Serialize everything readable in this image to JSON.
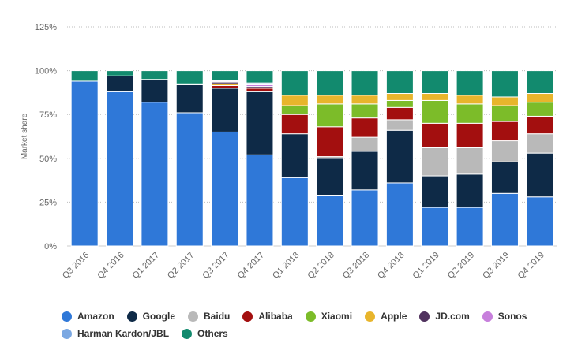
{
  "chart_data": {
    "type": "bar",
    "stacked": true,
    "ylabel": "Market share",
    "ylim": [
      0,
      125
    ],
    "yticks": [
      0,
      25,
      50,
      75,
      100,
      125
    ],
    "ytick_labels": [
      "0%",
      "25%",
      "50%",
      "75%",
      "100%",
      "125%"
    ],
    "grid": true,
    "legend_position": "bottom",
    "categories": [
      "Q3 2016",
      "Q4 2016",
      "Q1 2017",
      "Q2 2017",
      "Q3 2017",
      "Q4 2017",
      "Q1 2018",
      "Q2 2018",
      "Q3 2018",
      "Q4 2018",
      "Q1 2019",
      "Q2 2019",
      "Q3 2019",
      "Q4 2019"
    ],
    "series": [
      {
        "name": "Amazon",
        "color": "#2f78d8",
        "values": [
          94,
          88,
          82,
          76,
          65,
          52,
          39,
          29,
          32,
          36,
          22,
          22,
          30,
          28
        ]
      },
      {
        "name": "Google",
        "color": "#0e2a47",
        "values": [
          0,
          9,
          13,
          16,
          25,
          36,
          25,
          21,
          22,
          30,
          18,
          19,
          18,
          25
        ]
      },
      {
        "name": "Baidu",
        "color": "#b9b9b9",
        "values": [
          0,
          0,
          0,
          0.5,
          0,
          0,
          0,
          1,
          8,
          6,
          16,
          15,
          12,
          11
        ]
      },
      {
        "name": "Alibaba",
        "color": "#a30f0f",
        "values": [
          0,
          0,
          0,
          0,
          1.5,
          2,
          11,
          17,
          11,
          7,
          14,
          14,
          11,
          10
        ]
      },
      {
        "name": "Xiaomi",
        "color": "#7cbc29",
        "values": [
          0,
          0,
          0,
          0,
          0,
          0,
          5,
          13,
          8,
          4,
          13,
          11,
          9,
          8
        ]
      },
      {
        "name": "Apple",
        "color": "#e8b52c",
        "values": [
          0,
          0,
          0,
          0,
          1,
          0,
          6,
          5,
          5,
          4,
          4,
          5,
          5,
          5
        ]
      },
      {
        "name": "JD.com",
        "color": "#50325e",
        "values": [
          0,
          0,
          0,
          0,
          1,
          1,
          0,
          0,
          0,
          0,
          0,
          0,
          0,
          0
        ]
      },
      {
        "name": "Sonos",
        "color": "#c77fdc",
        "values": [
          0,
          0,
          0,
          0,
          0.5,
          1,
          0,
          0,
          0,
          0,
          0,
          0,
          0,
          0
        ]
      },
      {
        "name": "Harman Kardon/JBL",
        "color": "#7ba8e2",
        "values": [
          0,
          0,
          0,
          0,
          0.5,
          1,
          0,
          0,
          0,
          0,
          0,
          0,
          0,
          0
        ]
      },
      {
        "name": "Others",
        "color": "#128a6e",
        "values": [
          6,
          3,
          5,
          7.5,
          5.5,
          7,
          14,
          14,
          14,
          13,
          13,
          14,
          15,
          13
        ]
      }
    ]
  }
}
